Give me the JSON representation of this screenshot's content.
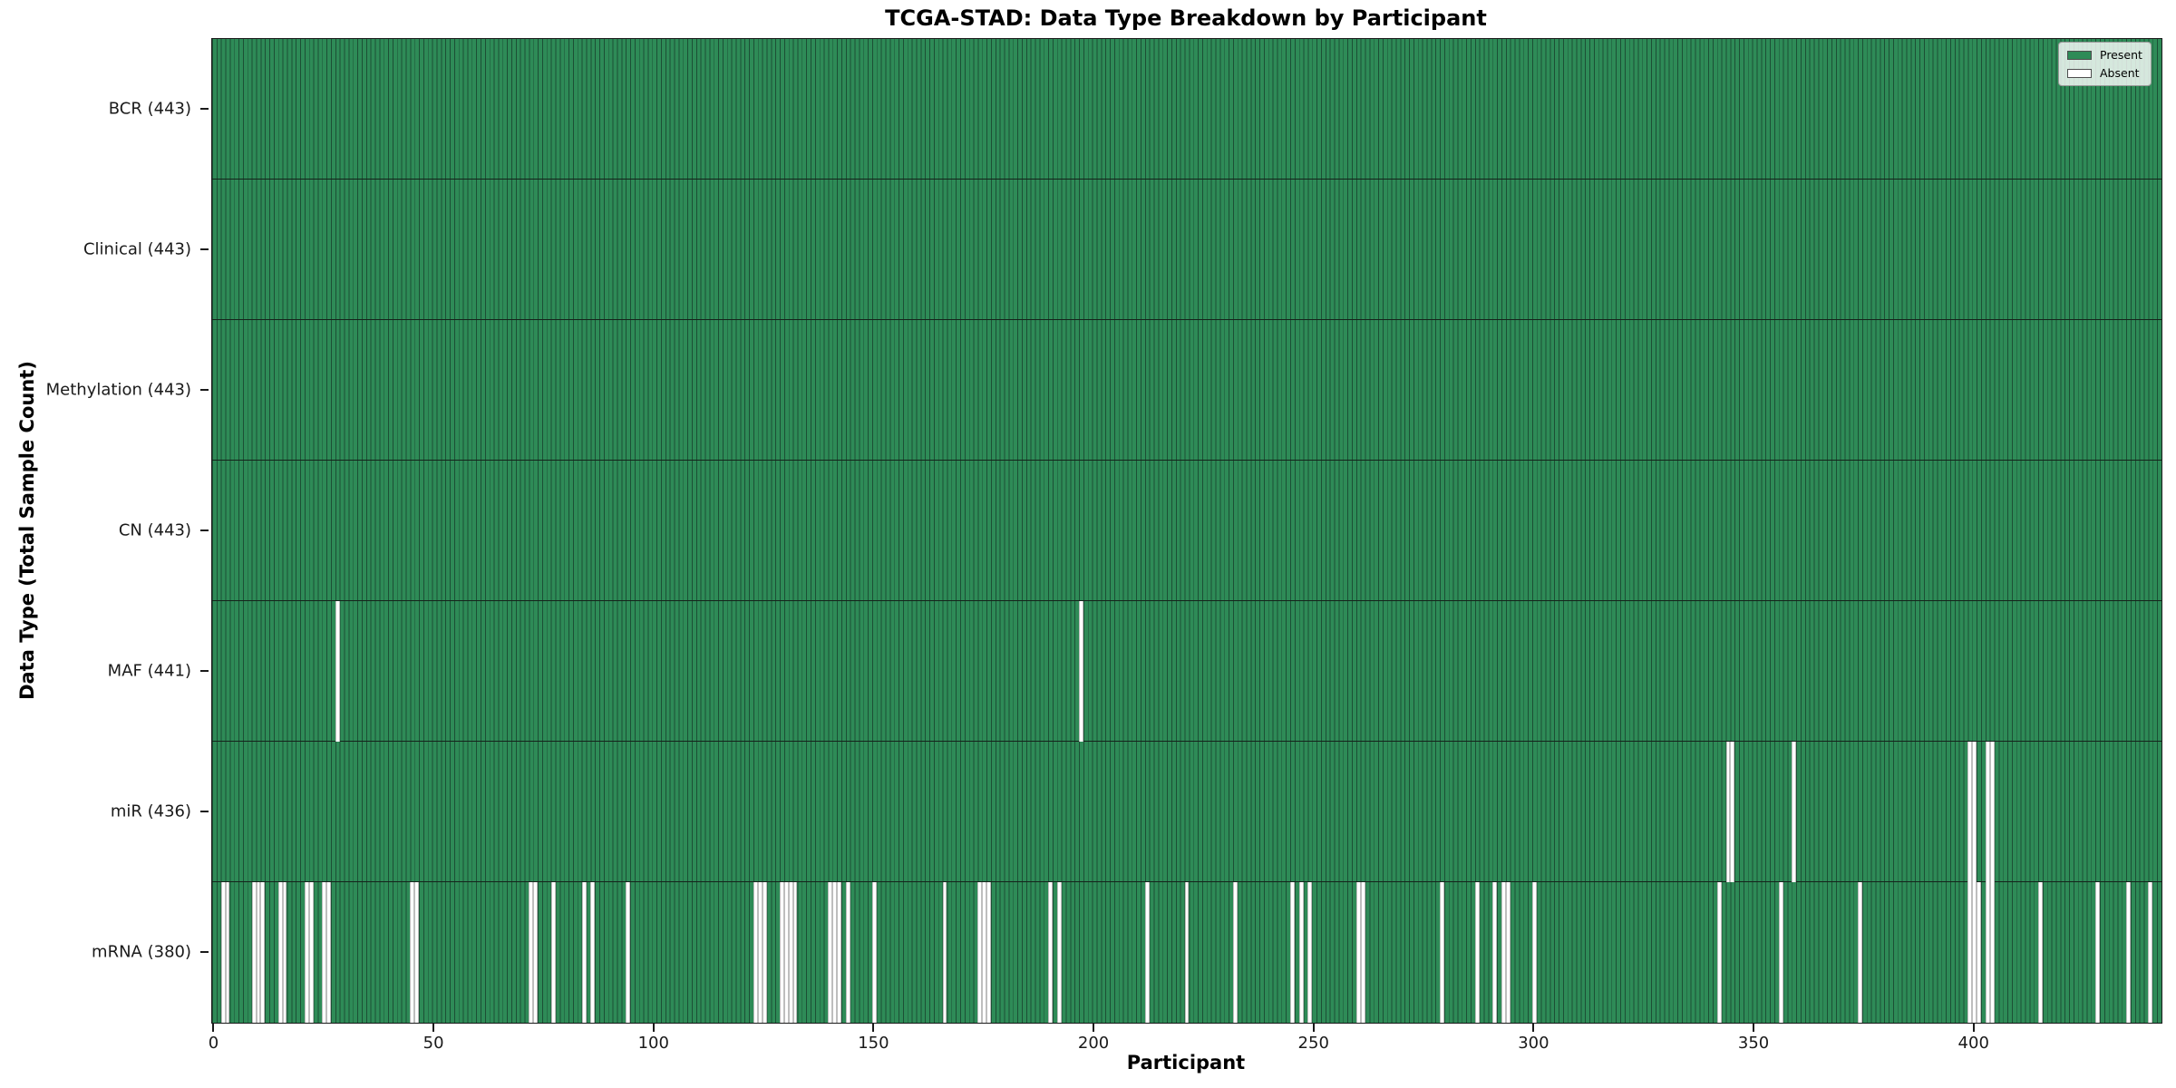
{
  "title": "TCGA-STAD: Data Type Breakdown by Participant",
  "chart_data": {
    "type": "heatmap",
    "title": "TCGA-STAD: Data Type Breakdown by Participant",
    "xlabel": "Participant",
    "ylabel": "Data Type (Total Sample Count)",
    "n_participants": 443,
    "grid": false,
    "x_axis": {
      "ticks": [
        0,
        50,
        100,
        150,
        200,
        250,
        300,
        350,
        400
      ],
      "range": [
        0,
        443
      ]
    },
    "legend": {
      "position": "upper-right",
      "entries": [
        {
          "label": "Present",
          "color": "#2e8b57"
        },
        {
          "label": "Absent",
          "color": "#ffffff"
        }
      ]
    },
    "colors": {
      "present": "#2e8b57",
      "bar_edge": "#1c4f35",
      "absent": "#ffffff",
      "row_separator": "#15231b"
    },
    "rows": [
      {
        "label": "BCR (443)",
        "name": "BCR",
        "present_count": 443,
        "absent": []
      },
      {
        "label": "Clinical (443)",
        "name": "Clinical",
        "present_count": 443,
        "absent": []
      },
      {
        "label": "Methylation (443)",
        "name": "Methylation",
        "present_count": 443,
        "absent": []
      },
      {
        "label": "CN (443)",
        "name": "CN",
        "present_count": 443,
        "absent": []
      },
      {
        "label": "MAF (441)",
        "name": "MAF",
        "present_count": 441,
        "absent": [
          28,
          197
        ]
      },
      {
        "label": "miR (436)",
        "name": "miR",
        "present_count": 436,
        "absent": [
          344,
          345,
          359,
          399,
          400,
          403,
          404
        ]
      },
      {
        "label": "mRNA (380)",
        "name": "mRNA",
        "present_count": 380,
        "absent": [
          2,
          3,
          9,
          10,
          11,
          15,
          16,
          21,
          22,
          25,
          26,
          45,
          46,
          72,
          73,
          77,
          84,
          86,
          94,
          123,
          124,
          125,
          129,
          130,
          131,
          132,
          140,
          141,
          142,
          144,
          150,
          166,
          174,
          175,
          176,
          190,
          192,
          212,
          221,
          232,
          245,
          247,
          249,
          260,
          261,
          279,
          287,
          291,
          293,
          294,
          300,
          342,
          356,
          374,
          399,
          400,
          401,
          403,
          404,
          415,
          428,
          435,
          440
        ]
      }
    ]
  }
}
